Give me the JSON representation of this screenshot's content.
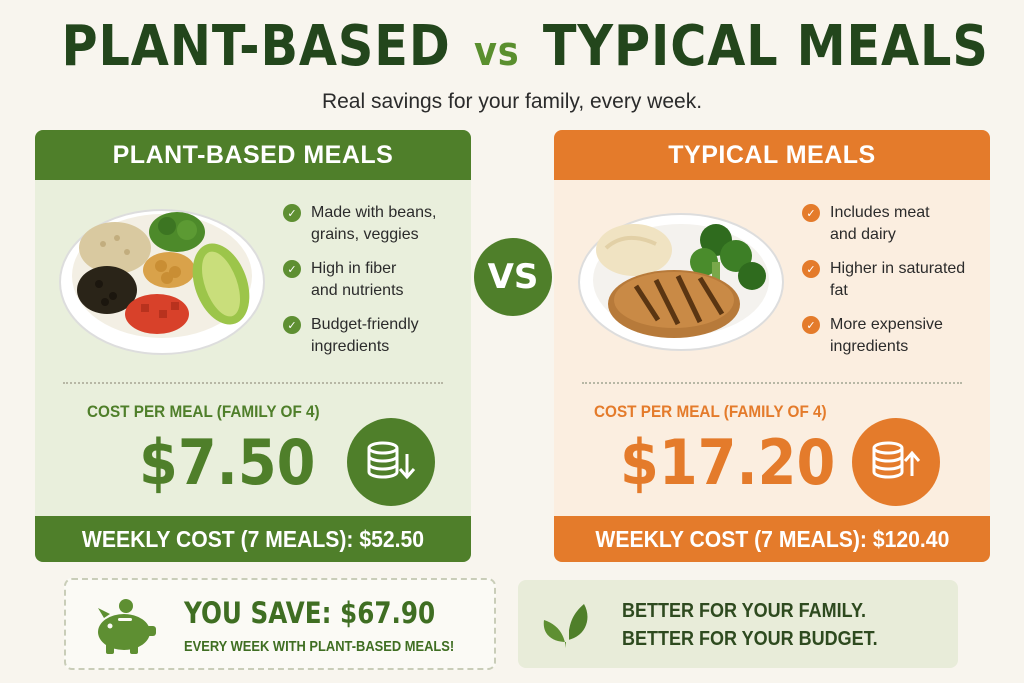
{
  "header": {
    "title_left": "PLANT-BASED",
    "title_vs": "vs",
    "title_right": "TYPICAL MEALS",
    "subtitle": "Real savings for your family, every week."
  },
  "plant": {
    "heading": "PLANT-BASED MEALS",
    "bullets": [
      {
        "line1": "Made with beans,",
        "line2": "grains, veggies"
      },
      {
        "line1": "High in fiber",
        "line2": "and nutrients"
      },
      {
        "line1": "Budget-friendly",
        "line2": "ingredients"
      }
    ],
    "cost_label": "COST PER MEAL (FAMILY OF 4)",
    "price": "$7.50",
    "badge_icon": "coins-down-arrow-icon",
    "weekly": "WEEKLY COST (7 MEALS): $52.50",
    "color": "#4f7f2a"
  },
  "typical": {
    "heading": "TYPICAL MEALS",
    "bullets": [
      {
        "line1": "Includes meat",
        "line2": "and dairy"
      },
      {
        "line1": "Higher in saturated",
        "line2": "fat"
      },
      {
        "line1": "More expensive",
        "line2": "ingredients"
      }
    ],
    "cost_label": "COST PER MEAL (FAMILY OF 4)",
    "price": "$17.20",
    "badge_icon": "coins-up-arrow-icon",
    "weekly": "WEEKLY COST (7 MEALS): $120.40",
    "color": "#e47b2b"
  },
  "vs_badge": "VS",
  "savings": {
    "title": "YOU SAVE: $67.90",
    "subtitle": "EVERY WEEK WITH PLANT-BASED MEALS!",
    "icon": "piggy-bank-icon"
  },
  "tagline": {
    "line1": "BETTER FOR YOUR FAMILY.",
    "line2": "BETTER FOR YOUR BUDGET.",
    "icon": "leaf-icon"
  }
}
